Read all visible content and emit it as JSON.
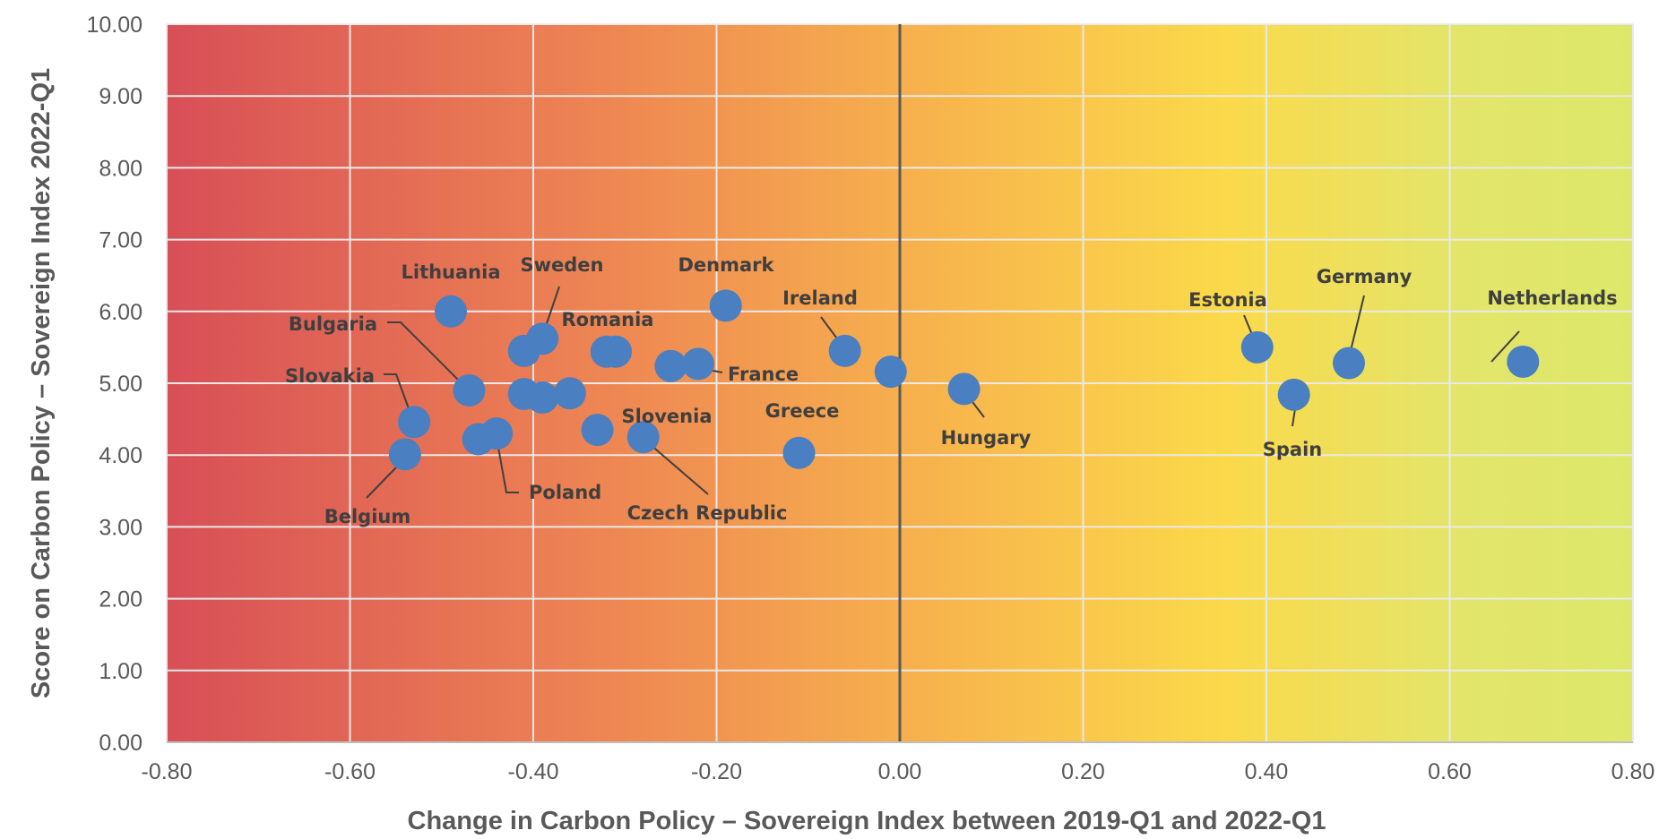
{
  "chart_data": {
    "type": "scatter",
    "title": "",
    "xlabel": "Change in Carbon Policy – Sovereign Index between 2019-Q1 and 2022-Q1",
    "ylabel": "Score on Carbon Policy – Sovereign Index 2022-Q1",
    "xlim": [
      -0.8,
      0.8
    ],
    "ylim": [
      0,
      10
    ],
    "x_ticks": [
      "-0.80",
      "-0.60",
      "-0.40",
      "-0.20",
      "0.00",
      "0.20",
      "0.40",
      "0.60",
      "0.80"
    ],
    "y_ticks": [
      "0.00",
      "1.00",
      "2.00",
      "3.00",
      "4.00",
      "5.00",
      "6.00",
      "7.00",
      "8.00",
      "9.00",
      "10.00"
    ],
    "grid": true,
    "background": "gradient red (left) to yellow-green (right)",
    "colors": {
      "point": "#4a7fc1",
      "gradient": [
        "#d84f57",
        "#ee8653",
        "#f8b94c",
        "#fbd94a",
        "#dde86a"
      ],
      "zero_line": "#595959",
      "grid": "#ffffff",
      "text": "#3f3f3f"
    },
    "points": [
      {
        "label": "Netherlands",
        "x": 0.68,
        "y": 5.3
      },
      {
        "label": "Germany",
        "x": 0.49,
        "y": 5.28
      },
      {
        "label": "Spain",
        "x": 0.43,
        "y": 4.84
      },
      {
        "label": "Estonia",
        "x": 0.39,
        "y": 5.5
      },
      {
        "label": "Hungary",
        "x": 0.07,
        "y": 4.92
      },
      {
        "label": "",
        "x": -0.01,
        "y": 5.16
      },
      {
        "label": "Ireland",
        "x": -0.06,
        "y": 5.45
      },
      {
        "label": "Greece",
        "x": -0.11,
        "y": 4.03
      },
      {
        "label": "Denmark",
        "x": -0.19,
        "y": 6.08
      },
      {
        "label": "France",
        "x": -0.22,
        "y": 5.27
      },
      {
        "label": "",
        "x": -0.25,
        "y": 5.24
      },
      {
        "label": "Czech Republic",
        "x": -0.28,
        "y": 4.25
      },
      {
        "label": "Romania",
        "x": -0.31,
        "y": 5.44
      },
      {
        "label": "",
        "x": -0.32,
        "y": 5.44
      },
      {
        "label": "Slovenia",
        "x": -0.33,
        "y": 4.35
      },
      {
        "label": "",
        "x": -0.36,
        "y": 4.86
      },
      {
        "label": "Sweden",
        "x": -0.39,
        "y": 5.62
      },
      {
        "label": "",
        "x": -0.41,
        "y": 5.45
      },
      {
        "label": "",
        "x": -0.39,
        "y": 4.8
      },
      {
        "label": "",
        "x": -0.41,
        "y": 4.85
      },
      {
        "label": "Lithuania",
        "x": -0.49,
        "y": 6.0
      },
      {
        "label": "Bulgaria",
        "x": -0.47,
        "y": 4.9
      },
      {
        "label": "Poland",
        "x": -0.44,
        "y": 4.3
      },
      {
        "label": "",
        "x": -0.46,
        "y": 4.22
      },
      {
        "label": "Slovakia",
        "x": -0.53,
        "y": 4.46
      },
      {
        "label": "Belgium",
        "x": -0.54,
        "y": 4.01
      }
    ]
  }
}
